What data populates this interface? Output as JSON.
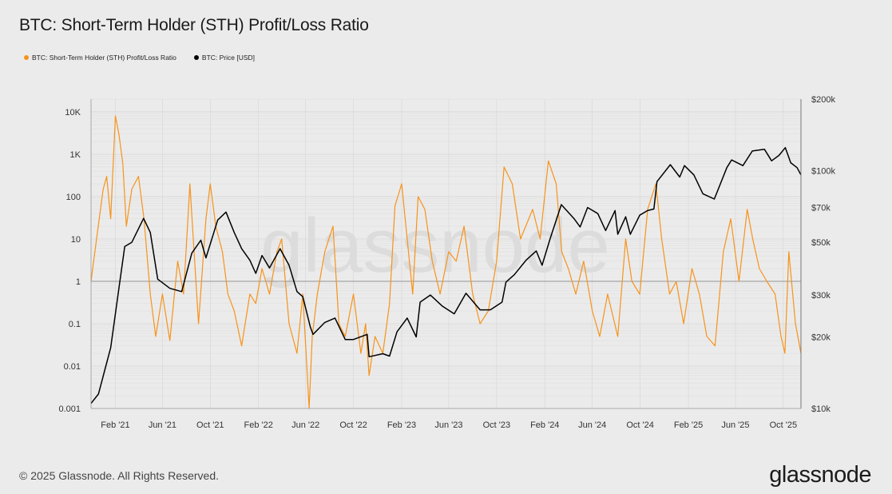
{
  "header": {
    "title": "BTC: Short-Term Holder (STH) Profit/Loss Ratio"
  },
  "footer": {
    "copyright": "© 2025 Glassnode. All Rights Reserved.",
    "logo_text": "glassnode"
  },
  "watermark": "glassnode",
  "colors": {
    "ratio": "#f7931a",
    "price": "#000000",
    "background": "#ebebeb",
    "grid": "#d6d6d6",
    "reference": "#8a8a8a"
  },
  "chart_data": {
    "type": "line",
    "title": "BTC: Short-Term Holder (STH) Profit/Loss Ratio",
    "legend_position": "top-left",
    "grid": true,
    "x_range": [
      "2020-12-01",
      "2025-11-15"
    ],
    "x_tick_labels": [
      "Feb '21",
      "Jun '21",
      "Oct '21",
      "Feb '22",
      "Jun '22",
      "Oct '22",
      "Feb '23",
      "Jun '23",
      "Oct '23",
      "Feb '24",
      "Jun '24",
      "Oct '24",
      "Feb '25",
      "Jun '25",
      "Oct '25"
    ],
    "x_ticks": [
      "2021-02-01",
      "2021-06-01",
      "2021-10-01",
      "2022-02-01",
      "2022-06-01",
      "2022-10-01",
      "2023-02-01",
      "2023-06-01",
      "2023-10-01",
      "2024-02-01",
      "2024-06-01",
      "2024-10-01",
      "2025-02-01",
      "2025-06-01",
      "2025-10-01"
    ],
    "y_left": {
      "scale": "log",
      "range": [
        0.001,
        20000
      ],
      "tick_values": [
        0.001,
        0.01,
        0.1,
        1,
        10,
        100,
        1000,
        10000
      ],
      "tick_labels": [
        "0.001",
        "0.01",
        "0.1",
        "1",
        "10",
        "100",
        "1K",
        "10K"
      ],
      "reference_line": 1
    },
    "y_right": {
      "scale": "log",
      "range": [
        10000,
        200000
      ],
      "tick_values": [
        10000,
        20000,
        30000,
        50000,
        70000,
        100000,
        200000
      ],
      "tick_labels": [
        "$10k",
        "$20k",
        "$30k",
        "$50k",
        "$70k",
        "$100k",
        "$200k"
      ]
    },
    "series": [
      {
        "name": "BTC: Short-Term Holder (STH) Profit/Loss Ratio",
        "axis": "left",
        "x": [
          "2020-12-01",
          "2020-12-15",
          "2021-01-01",
          "2021-01-10",
          "2021-01-20",
          "2021-02-01",
          "2021-02-10",
          "2021-02-20",
          "2021-03-01",
          "2021-03-15",
          "2021-04-01",
          "2021-04-15",
          "2021-05-01",
          "2021-05-15",
          "2021-06-01",
          "2021-06-20",
          "2021-07-10",
          "2021-07-25",
          "2021-08-10",
          "2021-09-01",
          "2021-09-20",
          "2021-10-01",
          "2021-10-15",
          "2021-11-01",
          "2021-11-15",
          "2021-12-01",
          "2021-12-20",
          "2022-01-10",
          "2022-01-25",
          "2022-02-10",
          "2022-03-01",
          "2022-03-20",
          "2022-04-01",
          "2022-04-20",
          "2022-05-10",
          "2022-05-25",
          "2022-06-10",
          "2022-06-18",
          "2022-07-01",
          "2022-07-20",
          "2022-08-10",
          "2022-08-25",
          "2022-09-10",
          "2022-10-01",
          "2022-10-20",
          "2022-11-01",
          "2022-11-10",
          "2022-11-25",
          "2022-12-15",
          "2023-01-01",
          "2023-01-15",
          "2023-02-01",
          "2023-02-15",
          "2023-03-01",
          "2023-03-15",
          "2023-04-01",
          "2023-04-20",
          "2023-05-10",
          "2023-06-01",
          "2023-06-20",
          "2023-07-10",
          "2023-08-01",
          "2023-08-20",
          "2023-09-10",
          "2023-10-01",
          "2023-10-20",
          "2023-11-10",
          "2023-12-01",
          "2024-01-01",
          "2024-01-20",
          "2024-02-10",
          "2024-03-01",
          "2024-03-15",
          "2024-04-01",
          "2024-04-20",
          "2024-05-10",
          "2024-06-01",
          "2024-06-20",
          "2024-07-10",
          "2024-08-05",
          "2024-08-25",
          "2024-09-10",
          "2024-09-30",
          "2024-10-20",
          "2024-11-10",
          "2024-11-25",
          "2024-12-15",
          "2025-01-01",
          "2025-01-20",
          "2025-02-10",
          "2025-03-01",
          "2025-03-20",
          "2025-04-10",
          "2025-05-01",
          "2025-05-20",
          "2025-06-10",
          "2025-07-01",
          "2025-07-15",
          "2025-08-01",
          "2025-08-20",
          "2025-09-10",
          "2025-09-25",
          "2025-10-05",
          "2025-10-15",
          "2025-11-01",
          "2025-11-15"
        ],
        "values": [
          1,
          10,
          150,
          300,
          30,
          8000,
          3000,
          600,
          20,
          150,
          300,
          30,
          0.5,
          0.05,
          0.5,
          0.04,
          3,
          0.5,
          200,
          0.1,
          30,
          200,
          20,
          5,
          0.5,
          0.2,
          0.03,
          0.5,
          0.3,
          2,
          0.5,
          5,
          10,
          0.1,
          0.02,
          0.5,
          0.001,
          0.05,
          0.5,
          5,
          20,
          0.1,
          0.05,
          0.5,
          0.02,
          0.1,
          0.006,
          0.05,
          0.02,
          0.3,
          60,
          200,
          10,
          0.5,
          100,
          50,
          3,
          0.5,
          5,
          3,
          20,
          0.5,
          0.1,
          0.2,
          3,
          500,
          200,
          10,
          50,
          10,
          700,
          200,
          5,
          2,
          0.5,
          3,
          0.2,
          0.05,
          0.5,
          0.05,
          10,
          1,
          0.5,
          50,
          200,
          10,
          0.5,
          1,
          0.1,
          2,
          0.5,
          0.05,
          0.03,
          5,
          30,
          1,
          50,
          10,
          2,
          1,
          0.5,
          0.05,
          0.02,
          5,
          0.1,
          0.02
        ]
      },
      {
        "name": "BTC: Price [USD]",
        "axis": "right",
        "x": [
          "2020-12-01",
          "2020-12-20",
          "2021-01-05",
          "2021-01-20",
          "2021-02-10",
          "2021-02-25",
          "2021-03-15",
          "2021-04-14",
          "2021-05-01",
          "2021-05-20",
          "2021-06-20",
          "2021-07-20",
          "2021-08-15",
          "2021-09-07",
          "2021-09-20",
          "2021-10-20",
          "2021-11-10",
          "2021-12-01",
          "2021-12-20",
          "2022-01-10",
          "2022-01-25",
          "2022-02-10",
          "2022-03-01",
          "2022-03-28",
          "2022-04-20",
          "2022-05-10",
          "2022-05-25",
          "2022-06-13",
          "2022-06-20",
          "2022-07-20",
          "2022-08-15",
          "2022-09-10",
          "2022-10-01",
          "2022-11-05",
          "2022-11-10",
          "2022-12-15",
          "2023-01-01",
          "2023-01-20",
          "2023-02-15",
          "2023-03-10",
          "2023-03-20",
          "2023-04-15",
          "2023-05-15",
          "2023-06-15",
          "2023-07-15",
          "2023-08-20",
          "2023-09-15",
          "2023-10-15",
          "2023-10-25",
          "2023-11-15",
          "2023-12-15",
          "2024-01-10",
          "2024-01-25",
          "2024-02-15",
          "2024-03-14",
          "2024-04-15",
          "2024-05-01",
          "2024-05-20",
          "2024-06-15",
          "2024-07-05",
          "2024-07-29",
          "2024-08-05",
          "2024-08-25",
          "2024-09-06",
          "2024-09-30",
          "2024-10-20",
          "2024-11-05",
          "2024-11-13",
          "2024-12-17",
          "2025-01-10",
          "2025-01-22",
          "2025-02-15",
          "2025-03-10",
          "2025-04-08",
          "2025-05-10",
          "2025-05-22",
          "2025-06-20",
          "2025-07-14",
          "2025-08-14",
          "2025-09-01",
          "2025-09-20",
          "2025-10-06",
          "2025-10-20",
          "2025-11-05",
          "2025-11-15"
        ],
        "values": [
          10500,
          11500,
          14500,
          18000,
          32000,
          48000,
          50000,
          63000,
          55000,
          35000,
          32000,
          31000,
          45000,
          51000,
          43000,
          62000,
          67000,
          55000,
          47000,
          42000,
          37000,
          44000,
          39000,
          47000,
          40000,
          31000,
          29500,
          22000,
          20500,
          23000,
          24000,
          19500,
          19500,
          20500,
          16500,
          17000,
          16600,
          21000,
          24000,
          20000,
          28000,
          30000,
          27000,
          25000,
          30500,
          26000,
          26000,
          28000,
          34000,
          36500,
          42000,
          46000,
          40000,
          52000,
          72000,
          63000,
          58000,
          70000,
          66000,
          56000,
          68000,
          54000,
          64000,
          54000,
          65000,
          68000,
          69000,
          90000,
          106000,
          94000,
          105000,
          96000,
          80000,
          76000,
          103000,
          111000,
          105000,
          121000,
          123000,
          110000,
          116000,
          125000,
          108000,
          103000,
          96000
        ]
      }
    ]
  }
}
